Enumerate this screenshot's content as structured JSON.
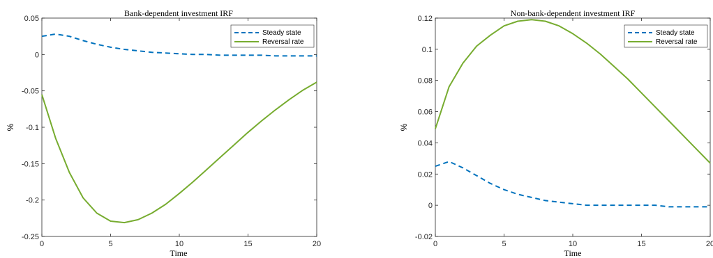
{
  "chart_data": [
    {
      "type": "line",
      "title": "Bank-dependent investment IRF",
      "xlabel": "Time",
      "ylabel": "%",
      "xlim": [
        0,
        20
      ],
      "ylim": [
        -0.25,
        0.05
      ],
      "xticks": [
        0,
        5,
        10,
        15,
        20
      ],
      "xtick_labels": [
        "0",
        "5",
        "10",
        "15",
        "20"
      ],
      "yticks": [
        0.05,
        0,
        -0.05,
        -0.1,
        -0.15,
        -0.2,
        -0.25
      ],
      "ytick_labels": [
        "0.05",
        "0",
        "-0.05",
        "-0.1",
        "-0.15",
        "-0.2",
        "-0.25"
      ],
      "legend_position": "top-right",
      "x": [
        0,
        1,
        2,
        3,
        4,
        5,
        6,
        7,
        8,
        9,
        10,
        11,
        12,
        13,
        14,
        15,
        16,
        17,
        18,
        19,
        20
      ],
      "series": [
        {
          "name": "Steady state",
          "style": "dashed",
          "color": "#0072BD",
          "values": [
            0.025,
            0.028,
            0.025,
            0.019,
            0.014,
            0.01,
            0.007,
            0.005,
            0.003,
            0.002,
            0.001,
            0.0,
            0.0,
            -0.001,
            -0.001,
            -0.001,
            -0.001,
            -0.002,
            -0.002,
            -0.002,
            -0.002
          ]
        },
        {
          "name": "Reversal rate",
          "style": "solid",
          "color": "#77AC30",
          "values": [
            -0.055,
            -0.115,
            -0.162,
            -0.197,
            -0.218,
            -0.229,
            -0.231,
            -0.227,
            -0.218,
            -0.206,
            -0.191,
            -0.175,
            -0.158,
            -0.141,
            -0.124,
            -0.107,
            -0.091,
            -0.076,
            -0.062,
            -0.049,
            -0.038
          ]
        }
      ]
    },
    {
      "type": "line",
      "title": "Non-bank-dependent investment IRF",
      "xlabel": "Time",
      "ylabel": "%",
      "xlim": [
        0,
        20
      ],
      "ylim": [
        -0.02,
        0.12
      ],
      "xticks": [
        0,
        5,
        10,
        15,
        20
      ],
      "xtick_labels": [
        "0",
        "5",
        "10",
        "15",
        "20"
      ],
      "yticks": [
        0.12,
        0.1,
        0.08,
        0.06,
        0.04,
        0.02,
        0,
        -0.02
      ],
      "ytick_labels": [
        "0.12",
        "0.1",
        "0.08",
        "0.06",
        "0.04",
        "0.02",
        "0",
        "-0.02"
      ],
      "legend_position": "top-right",
      "x": [
        0,
        1,
        2,
        3,
        4,
        5,
        6,
        7,
        8,
        9,
        10,
        11,
        12,
        13,
        14,
        15,
        16,
        17,
        18,
        19,
        20
      ],
      "series": [
        {
          "name": "Steady state",
          "style": "dashed",
          "color": "#0072BD",
          "values": [
            0.025,
            0.028,
            0.024,
            0.019,
            0.014,
            0.01,
            0.007,
            0.005,
            0.003,
            0.002,
            0.001,
            0.0,
            0.0,
            0.0,
            0.0,
            0.0,
            0.0,
            -0.001,
            -0.001,
            -0.001,
            -0.001
          ]
        },
        {
          "name": "Reversal rate",
          "style": "solid",
          "color": "#77AC30",
          "values": [
            0.049,
            0.076,
            0.091,
            0.102,
            0.109,
            0.115,
            0.118,
            0.119,
            0.118,
            0.115,
            0.11,
            0.104,
            0.097,
            0.089,
            0.081,
            0.072,
            0.063,
            0.054,
            0.045,
            0.036,
            0.027
          ]
        }
      ]
    }
  ]
}
